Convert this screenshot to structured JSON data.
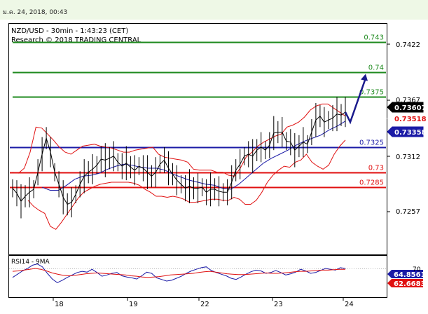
{
  "header": {
    "timestamp": "ม.ค. 24, 2018, 00:43"
  },
  "chart_data": {
    "type": "line",
    "title": "NZD/USD - 30min - 1:43:23 (CET)",
    "subtitle": "Research © 2018 TRADING CENTRAL",
    "xlabel": "",
    "ylabel": "",
    "x_ticks": [
      "18",
      "19",
      "22",
      "23",
      "24"
    ],
    "y_ticks": [
      "0.7422",
      "0.7367",
      "0.7312",
      "0.7257"
    ],
    "ylim": [
      0.7218,
      0.7448
    ],
    "grid": false,
    "legend": "none",
    "levels": [
      {
        "value": 0.743,
        "label": "0.743",
        "color": "#1e8a1e"
      },
      {
        "value": 0.74,
        "label": "0.74",
        "color": "#1e8a1e"
      },
      {
        "value": 0.7375,
        "label": "0.7375",
        "color": "#1e8a1e"
      },
      {
        "value": 0.7325,
        "label": "0.7325",
        "color": "#1a1aa6"
      },
      {
        "value": 0.73,
        "label": "0.73",
        "color": "#e01010"
      },
      {
        "value": 0.7285,
        "label": "0.7285",
        "color": "#e01010"
      }
    ],
    "price_badges": [
      {
        "text": "0.73607",
        "bg": "#000000",
        "fg": "#ffffff",
        "value": 0.73607
      },
      {
        "text": "0.73518",
        "bg": "#ffffff",
        "fg": "#e01010",
        "value": 0.73518
      },
      {
        "text": "0.73358",
        "bg": "#1a1aa6",
        "fg": "#ffffff",
        "value": 0.73358
      }
    ],
    "close": [
      0.7284,
      0.7279,
      0.7271,
      0.7276,
      0.728,
      0.7283,
      0.73,
      0.7318,
      0.7334,
      0.732,
      0.73,
      0.7288,
      0.7275,
      0.7268,
      0.727,
      0.7278,
      0.7288,
      0.7296,
      0.73,
      0.7303,
      0.7307,
      0.7313,
      0.7312,
      0.7314,
      0.7316,
      0.731,
      0.7306,
      0.7309,
      0.7305,
      0.7302,
      0.7306,
      0.7304,
      0.73,
      0.7296,
      0.73,
      0.7308,
      0.7312,
      0.7304,
      0.7298,
      0.7292,
      0.7288,
      0.7284,
      0.7286,
      0.7284,
      0.7284,
      0.7285,
      0.728,
      0.7283,
      0.7283,
      0.7281,
      0.728,
      0.728,
      0.729,
      0.7302,
      0.7308,
      0.7316,
      0.7318,
      0.7316,
      0.7322,
      0.7325,
      0.7322,
      0.7327,
      0.7339,
      0.734,
      0.734,
      0.7331,
      0.733,
      0.7322,
      0.7326,
      0.733,
      0.7328,
      0.734,
      0.7352,
      0.7356,
      0.735,
      0.7352,
      0.7354,
      0.7358,
      0.7357,
      0.736
    ],
    "bb_upper": [
      0.73,
      0.7299,
      0.7304,
      0.732,
      0.7345,
      0.7344,
      0.7338,
      0.7332,
      0.7325,
      0.732,
      0.7318,
      0.7322,
      0.7326,
      0.7327,
      0.7328,
      0.7326,
      0.7325,
      0.7324,
      0.7322,
      0.732,
      0.732,
      0.7322,
      0.7323,
      0.7324,
      0.7325,
      0.7318,
      0.7315,
      0.7314,
      0.7313,
      0.7312,
      0.731,
      0.7303,
      0.7302,
      0.7302,
      0.7302,
      0.73,
      0.73,
      0.7297,
      0.7296,
      0.7304,
      0.7315,
      0.732,
      0.7326,
      0.733,
      0.7333,
      0.7336,
      0.7338,
      0.7345,
      0.7347,
      0.735,
      0.7355,
      0.7362,
      0.7366,
      0.7368,
      0.7368,
      0.7364,
      0.736,
      0.7356
    ],
    "bb_lower": [
      0.7272,
      0.7266,
      0.7262,
      0.7259,
      0.7246,
      0.7243,
      0.725,
      0.7258,
      0.7266,
      0.7274,
      0.728,
      0.7283,
      0.7286,
      0.7288,
      0.7289,
      0.729,
      0.729,
      0.729,
      0.729,
      0.7289,
      0.7287,
      0.7283,
      0.728,
      0.7276,
      0.7276,
      0.7275,
      0.7276,
      0.7275,
      0.7273,
      0.727,
      0.727,
      0.7271,
      0.7272,
      0.7273,
      0.7273,
      0.7272,
      0.7272,
      0.7275,
      0.7273,
      0.7268,
      0.7268,
      0.7272,
      0.728,
      0.729,
      0.7297,
      0.7302,
      0.7306,
      0.7305,
      0.731,
      0.7312,
      0.7318,
      0.731,
      0.7306,
      0.7303,
      0.7307,
      0.7318,
      0.7326,
      0.7332
    ],
    "ma": [
      0.7285,
      0.7282,
      0.7282,
      0.7287,
      0.7293,
      0.7296,
      0.7297,
      0.7299,
      0.7303,
      0.7306,
      0.7308,
      0.7307,
      0.7305,
      0.7304,
      0.7304,
      0.7302,
      0.7298,
      0.7295,
      0.7292,
      0.729,
      0.7288,
      0.7287,
      0.7284,
      0.7283,
      0.7288,
      0.7295,
      0.7302,
      0.7309,
      0.7314,
      0.7318,
      0.7322,
      0.7327,
      0.7331,
      0.7334,
      0.7337,
      0.7342,
      0.7346,
      0.7351
    ],
    "forecast": [
      0.735,
      0.7398
    ],
    "rsi": {
      "label": "RSI14 - 9MA",
      "levels": [
        "70"
      ],
      "badges": [
        {
          "text": "64.8561",
          "bg": "#1a1aa6",
          "fg": "#ffffff"
        },
        {
          "text": "62.6683",
          "bg": "#e01010",
          "fg": "#ffffff"
        }
      ],
      "rsi_values": [
        40,
        48,
        56,
        62,
        70,
        73,
        66,
        50,
        36,
        27,
        33,
        40,
        46,
        52,
        55,
        53,
        60,
        52,
        43,
        46,
        50,
        52,
        44,
        41,
        39,
        36,
        44,
        53,
        50,
        39,
        35,
        31,
        33,
        38,
        43,
        50,
        56,
        60,
        64,
        66,
        57,
        52,
        48,
        44,
        38,
        35,
        41,
        48,
        54,
        58,
        56,
        50,
        52,
        57,
        52,
        46,
        49,
        53,
        60,
        56,
        50,
        52,
        57,
        62,
        60,
        58,
        64,
        62
      ],
      "ma_values": [
        55,
        56,
        58,
        60,
        62,
        60,
        56,
        51,
        48,
        45,
        44,
        45,
        47,
        49,
        50,
        51,
        50,
        49,
        48,
        47,
        46,
        44,
        43,
        41,
        40,
        41,
        42,
        44,
        46,
        47,
        48,
        49,
        50,
        52,
        54,
        55,
        53,
        51,
        49,
        48,
        47,
        47,
        48,
        49,
        50,
        51,
        50,
        50,
        51,
        52,
        54,
        55,
        55,
        56,
        57,
        58,
        58,
        59,
        60,
        60
      ]
    }
  }
}
